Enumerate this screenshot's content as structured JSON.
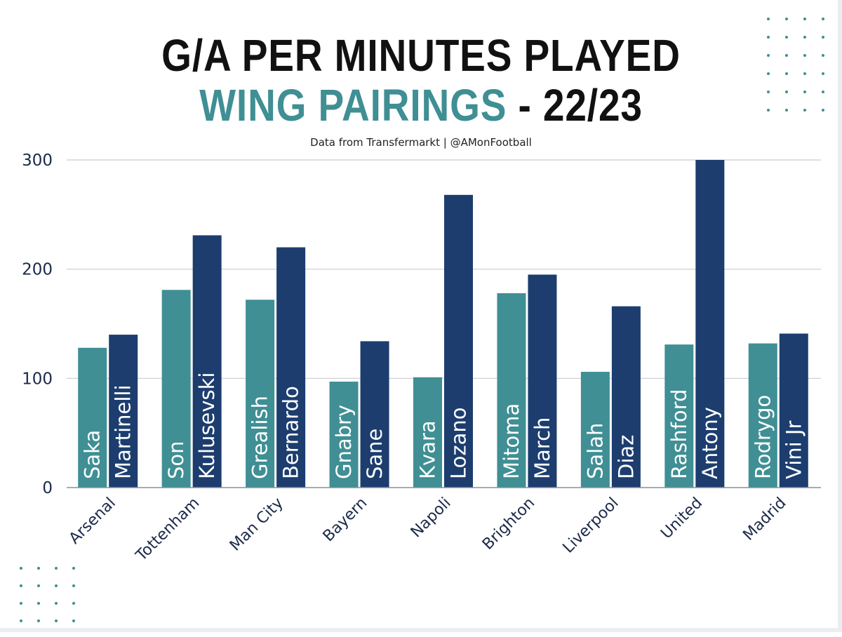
{
  "header": {
    "title_line1": "G/A PER MINUTES PLAYED",
    "title_line2_highlight": "WING PAIRINGS",
    "title_line2_rest": " - 22/23",
    "subtitle": "Data from Transfermarkt | @AMonFootball"
  },
  "colors": {
    "teal": "#3f8f94",
    "navy": "#1c3d6e",
    "grid": "#c9ccd2",
    "text": "#1c2a4a",
    "dots": "#3f8f94"
  },
  "chart_data": {
    "type": "bar",
    "categories": [
      "Arsenal",
      "Tottenham",
      "Man City",
      "Bayern",
      "Napoli",
      "Brighton",
      "Liverpool",
      "United",
      "Madrid"
    ],
    "ylim": [
      0,
      300
    ],
    "yticks": [
      "0",
      "100",
      "200",
      "300"
    ],
    "grid": true,
    "series": [
      {
        "color": "#3f8f94",
        "values": [
          128,
          181,
          172,
          97,
          101,
          178,
          106,
          131,
          132
        ],
        "labels": [
          "Saka",
          "Son",
          "Grealish",
          "Gnabry",
          "Kvara",
          "Mitoma",
          "Salah",
          "Rashford",
          "Rodrygo"
        ]
      },
      {
        "color": "#1c3d6e",
        "values": [
          140,
          231,
          220,
          134,
          268,
          195,
          166,
          300,
          141
        ],
        "labels": [
          "Martinelli",
          "Kulusevski",
          "Bernardo",
          "Sane",
          "Lozano",
          "March",
          "Diaz",
          "Antony",
          "Vini Jr"
        ]
      }
    ]
  }
}
